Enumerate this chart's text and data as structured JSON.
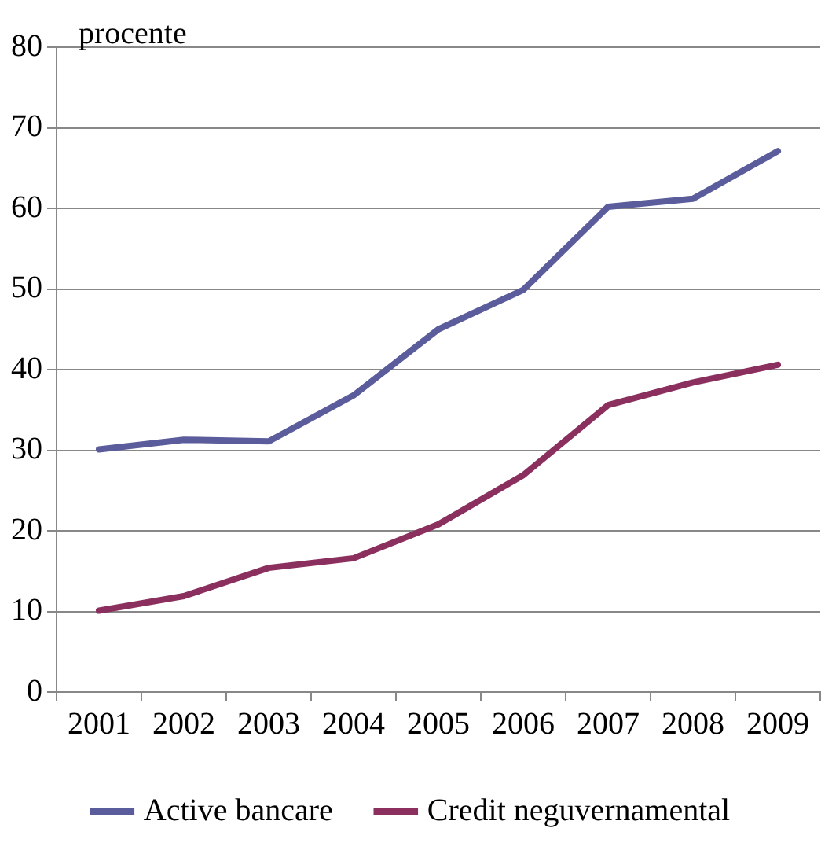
{
  "chart_data": {
    "type": "line",
    "ylabel": "procente",
    "categories": [
      "2001",
      "2002",
      "2003",
      "2004",
      "2005",
      "2006",
      "2007",
      "2008",
      "2009"
    ],
    "series": [
      {
        "name": "Active bancare",
        "color": "#5b5c9b",
        "values": [
          30.1,
          31.3,
          31.1,
          36.8,
          45.0,
          49.9,
          60.2,
          61.2,
          67.1
        ]
      },
      {
        "name": "Credit neguvernamental",
        "color": "#8b2f5e",
        "values": [
          10.1,
          11.9,
          15.4,
          16.6,
          20.8,
          26.9,
          35.6,
          38.4,
          40.6
        ]
      }
    ],
    "ylim": [
      0,
      80
    ],
    "yticks": [
      0,
      10,
      20,
      30,
      40,
      50,
      60,
      70,
      80
    ],
    "grid": "y",
    "legend": "bottom",
    "marker": "none",
    "line_style": "solid"
  }
}
